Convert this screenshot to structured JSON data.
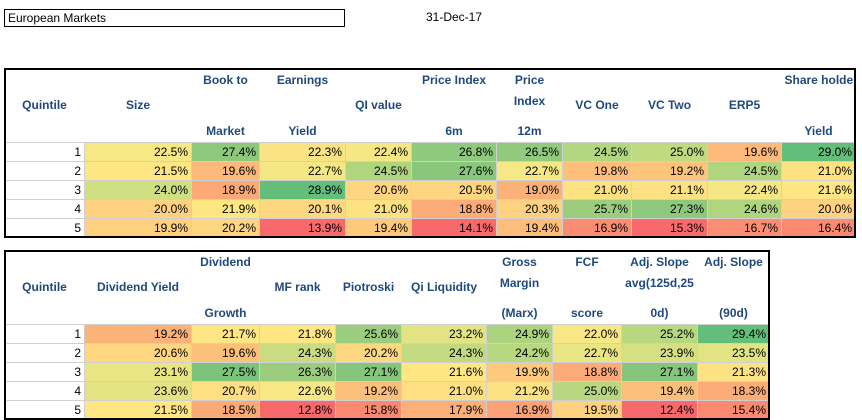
{
  "title": "European Markets",
  "date": "31-Dec-17",
  "table1": {
    "headers": [
      {
        "top": "",
        "bottom": "",
        "center": "Quintile"
      },
      {
        "top": "",
        "bottom": "",
        "center": "Size"
      },
      {
        "top": "Book to",
        "bottom": "Market",
        "center": ""
      },
      {
        "top": "Earnings",
        "bottom": "Yield",
        "center": ""
      },
      {
        "top": "",
        "bottom": "",
        "center": "QI value"
      },
      {
        "top": "Price Index",
        "bottom": "6m",
        "center": ""
      },
      {
        "top": "Price",
        "mid": "Index",
        "bottom": "12m",
        "center": ""
      },
      {
        "top": "",
        "bottom": "",
        "center": "VC One"
      },
      {
        "top": "",
        "bottom": "",
        "center": "VC Two"
      },
      {
        "top": "",
        "bottom": "",
        "center": "ERP5"
      },
      {
        "top": "Share holder",
        "bottom": "Yield",
        "center": ""
      }
    ],
    "rows": [
      {
        "q": "1",
        "cells": [
          {
            "v": "22.5%",
            "c": "#f7e886"
          },
          {
            "v": "27.4%",
            "c": "#8dc87c"
          },
          {
            "v": "22.3%",
            "c": "#f9e382"
          },
          {
            "v": "22.4%",
            "c": "#f4e784"
          },
          {
            "v": "26.8%",
            "c": "#8ec97d"
          },
          {
            "v": "26.5%",
            "c": "#92ca7d"
          },
          {
            "v": "24.5%",
            "c": "#b3d680"
          },
          {
            "v": "25.0%",
            "c": "#c0da81"
          },
          {
            "v": "19.6%",
            "c": "#fdb979"
          },
          {
            "v": "29.0%",
            "c": "#63be7b"
          }
        ]
      },
      {
        "q": "2",
        "cells": [
          {
            "v": "21.5%",
            "c": "#fde683"
          },
          {
            "v": "19.6%",
            "c": "#fcb979"
          },
          {
            "v": "22.7%",
            "c": "#f4e884"
          },
          {
            "v": "24.5%",
            "c": "#b0d57f"
          },
          {
            "v": "27.6%",
            "c": "#88c77c"
          },
          {
            "v": "22.7%",
            "c": "#f6e885"
          },
          {
            "v": "19.8%",
            "c": "#fdbf7b"
          },
          {
            "v": "19.2%",
            "c": "#fdc57c"
          },
          {
            "v": "24.5%",
            "c": "#b0d57f"
          },
          {
            "v": "21.0%",
            "c": "#fee282"
          }
        ]
      },
      {
        "q": "3",
        "cells": [
          {
            "v": "24.0%",
            "c": "#d0df82"
          },
          {
            "v": "18.9%",
            "c": "#fca977"
          },
          {
            "v": "28.9%",
            "c": "#63be7b"
          },
          {
            "v": "20.6%",
            "c": "#fed580"
          },
          {
            "v": "20.5%",
            "c": "#fed680"
          },
          {
            "v": "19.0%",
            "c": "#fcb179"
          },
          {
            "v": "21.0%",
            "c": "#fee282"
          },
          {
            "v": "21.1%",
            "c": "#fee182"
          },
          {
            "v": "22.4%",
            "c": "#f5e784"
          },
          {
            "v": "21.6%",
            "c": "#fde683"
          }
        ]
      },
      {
        "q": "4",
        "cells": [
          {
            "v": "20.0%",
            "c": "#fed280"
          },
          {
            "v": "21.9%",
            "c": "#fee783"
          },
          {
            "v": "20.1%",
            "c": "#fed881"
          },
          {
            "v": "21.0%",
            "c": "#fee282"
          },
          {
            "v": "18.8%",
            "c": "#fcac78"
          },
          {
            "v": "20.3%",
            "c": "#fed280"
          },
          {
            "v": "25.7%",
            "c": "#9ccd7e"
          },
          {
            "v": "27.3%",
            "c": "#8dc87c"
          },
          {
            "v": "24.6%",
            "c": "#b0d57f"
          },
          {
            "v": "20.0%",
            "c": "#fed280"
          }
        ]
      },
      {
        "q": "5",
        "cells": [
          {
            "v": "19.9%",
            "c": "#fed07f"
          },
          {
            "v": "20.2%",
            "c": "#fed580"
          },
          {
            "v": "13.9%",
            "c": "#f8696b"
          },
          {
            "v": "19.4%",
            "c": "#fdc97d"
          },
          {
            "v": "14.1%",
            "c": "#f8696b"
          },
          {
            "v": "19.4%",
            "c": "#fdbd7b"
          },
          {
            "v": "16.9%",
            "c": "#fa8c71"
          },
          {
            "v": "15.3%",
            "c": "#f8696b"
          },
          {
            "v": "16.7%",
            "c": "#fa8e72"
          },
          {
            "v": "16.4%",
            "c": "#fa8b71"
          }
        ]
      }
    ]
  },
  "table2": {
    "headers": [
      {
        "top": "",
        "bottom": "",
        "center": "Quintile"
      },
      {
        "top": "",
        "bottom": "",
        "center": "Dividend Yield"
      },
      {
        "top": "Dividend",
        "bottom": "Growth",
        "center": ""
      },
      {
        "top": "",
        "bottom": "",
        "center": "MF rank"
      },
      {
        "top": "",
        "bottom": "",
        "center": "Piotroski"
      },
      {
        "top": "",
        "bottom": "",
        "center": "Qi Liquidity"
      },
      {
        "top": "Gross",
        "mid": "Margin",
        "bottom": "(Marx)",
        "center": ""
      },
      {
        "top": "FCF",
        "bottom": "score",
        "center": ""
      },
      {
        "top": "Adj. Slope",
        "mid": "avg(125d,25",
        "bottom": "0d)",
        "center": ""
      },
      {
        "top": "Adj. Slope",
        "bottom": "(90d)",
        "center": ""
      }
    ],
    "rows": [
      {
        "q": "1",
        "cells": [
          {
            "v": "19.2%",
            "c": "#fcb379"
          },
          {
            "v": "21.7%",
            "c": "#fde683"
          },
          {
            "v": "21.8%",
            "c": "#fee683"
          },
          {
            "v": "25.6%",
            "c": "#9bcd7e"
          },
          {
            "v": "23.2%",
            "c": "#e2e383"
          },
          {
            "v": "24.9%",
            "c": "#acd47f"
          },
          {
            "v": "22.0%",
            "c": "#f7e885"
          },
          {
            "v": "25.2%",
            "c": "#b7d780"
          },
          {
            "v": "29.4%",
            "c": "#63be7b"
          }
        ]
      },
      {
        "q": "2",
        "cells": [
          {
            "v": "20.6%",
            "c": "#fed780"
          },
          {
            "v": "19.6%",
            "c": "#fcc07b"
          },
          {
            "v": "24.3%",
            "c": "#c9dc81"
          },
          {
            "v": "20.2%",
            "c": "#fdd880"
          },
          {
            "v": "24.3%",
            "c": "#c3da81"
          },
          {
            "v": "24.2%",
            "c": "#b7d780"
          },
          {
            "v": "22.7%",
            "c": "#eae583"
          },
          {
            "v": "23.9%",
            "c": "#d6e082"
          },
          {
            "v": "23.5%",
            "c": "#e2e383"
          }
        ]
      },
      {
        "q": "3",
        "cells": [
          {
            "v": "23.1%",
            "c": "#eae583"
          },
          {
            "v": "27.5%",
            "c": "#7cc47c"
          },
          {
            "v": "26.3%",
            "c": "#9ccd7e"
          },
          {
            "v": "27.1%",
            "c": "#86c67c"
          },
          {
            "v": "21.6%",
            "c": "#fee683"
          },
          {
            "v": "19.9%",
            "c": "#fdc97d"
          },
          {
            "v": "18.8%",
            "c": "#fcaa77"
          },
          {
            "v": "27.1%",
            "c": "#86c67c"
          },
          {
            "v": "21.3%",
            "c": "#fde283"
          }
        ]
      },
      {
        "q": "4",
        "cells": [
          {
            "v": "23.6%",
            "c": "#e4e383"
          },
          {
            "v": "20.7%",
            "c": "#fee082"
          },
          {
            "v": "22.6%",
            "c": "#f7e885"
          },
          {
            "v": "19.2%",
            "c": "#fcbe7b"
          },
          {
            "v": "21.0%",
            "c": "#fde082"
          },
          {
            "v": "21.2%",
            "c": "#fde283"
          },
          {
            "v": "25.0%",
            "c": "#b9d780"
          },
          {
            "v": "19.4%",
            "c": "#fcbf7b"
          },
          {
            "v": "18.3%",
            "c": "#fcac78"
          }
        ]
      },
      {
        "q": "5",
        "cells": [
          {
            "v": "21.5%",
            "c": "#fde683"
          },
          {
            "v": "18.5%",
            "c": "#fbaa77"
          },
          {
            "v": "12.8%",
            "c": "#f8696b"
          },
          {
            "v": "15.8%",
            "c": "#f98a70"
          },
          {
            "v": "17.9%",
            "c": "#fcaf78"
          },
          {
            "v": "16.9%",
            "c": "#fba276"
          },
          {
            "v": "19.5%",
            "c": "#fdd17f"
          },
          {
            "v": "12.4%",
            "c": "#f8696b"
          },
          {
            "v": "15.4%",
            "c": "#f98a70"
          }
        ]
      }
    ]
  }
}
